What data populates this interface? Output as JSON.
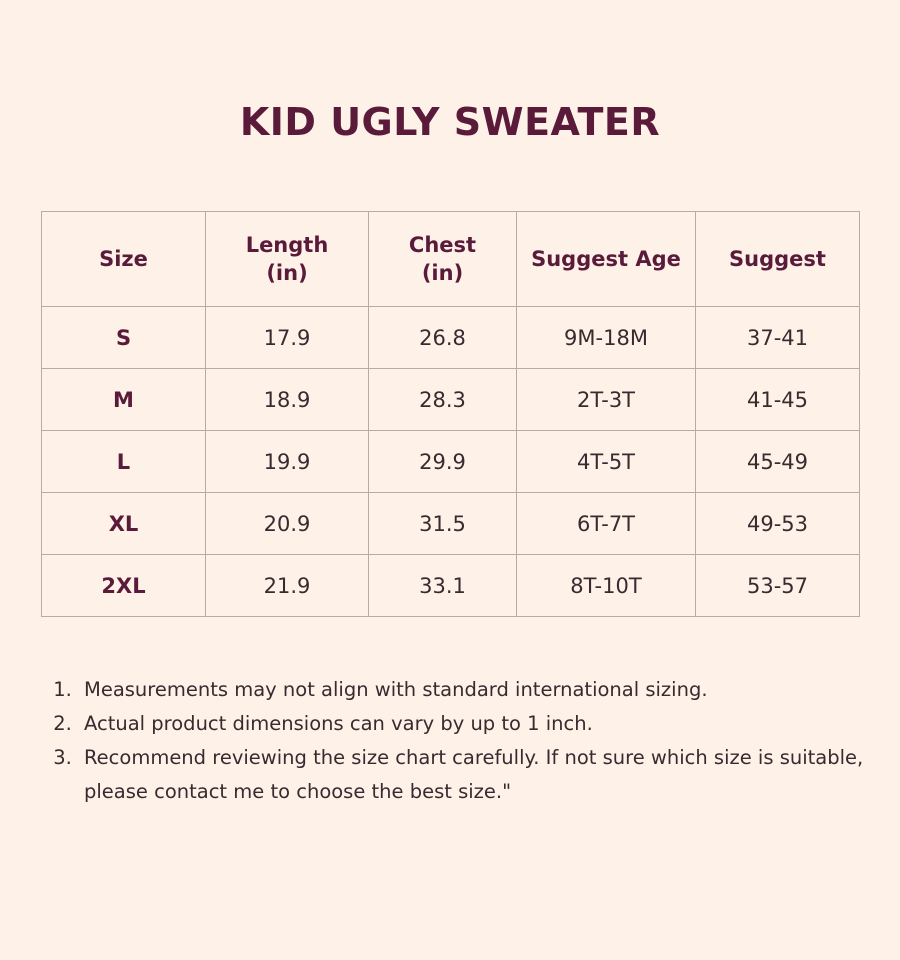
{
  "title": "KID UGLY SWEATER",
  "table": {
    "headers": {
      "size": "Size",
      "length_line1": "Length",
      "length_line2": "(in)",
      "chest_line1": "Chest",
      "chest_line2": "(in)",
      "suggest_age": "Suggest Age",
      "suggest": "Suggest"
    },
    "rows": [
      {
        "size": "S",
        "length": "17.9",
        "chest": "26.8",
        "age": "9M-18M",
        "suggest": "37-41"
      },
      {
        "size": "M",
        "length": "18.9",
        "chest": "28.3",
        "age": "2T-3T",
        "suggest": "41-45"
      },
      {
        "size": "L",
        "length": "19.9",
        "chest": "29.9",
        "age": "4T-5T",
        "suggest": "45-49"
      },
      {
        "size": "XL",
        "length": "20.9",
        "chest": "31.5",
        "age": "6T-7T",
        "suggest": "49-53"
      },
      {
        "size": "2XL",
        "length": "21.9",
        "chest": "33.1",
        "age": "8T-10T",
        "suggest": "53-57"
      }
    ]
  },
  "notes": [
    "Measurements may not align with standard international sizing.",
    "Actual product dimensions can vary by up to 1 inch.",
    "Recommend reviewing the size chart carefully. If not sure which size is suitable, please contact me to choose the best size.\""
  ],
  "colors": {
    "background": "#fdf1e8",
    "accent": "#5a1a3a",
    "border": "#b9aaa5"
  }
}
